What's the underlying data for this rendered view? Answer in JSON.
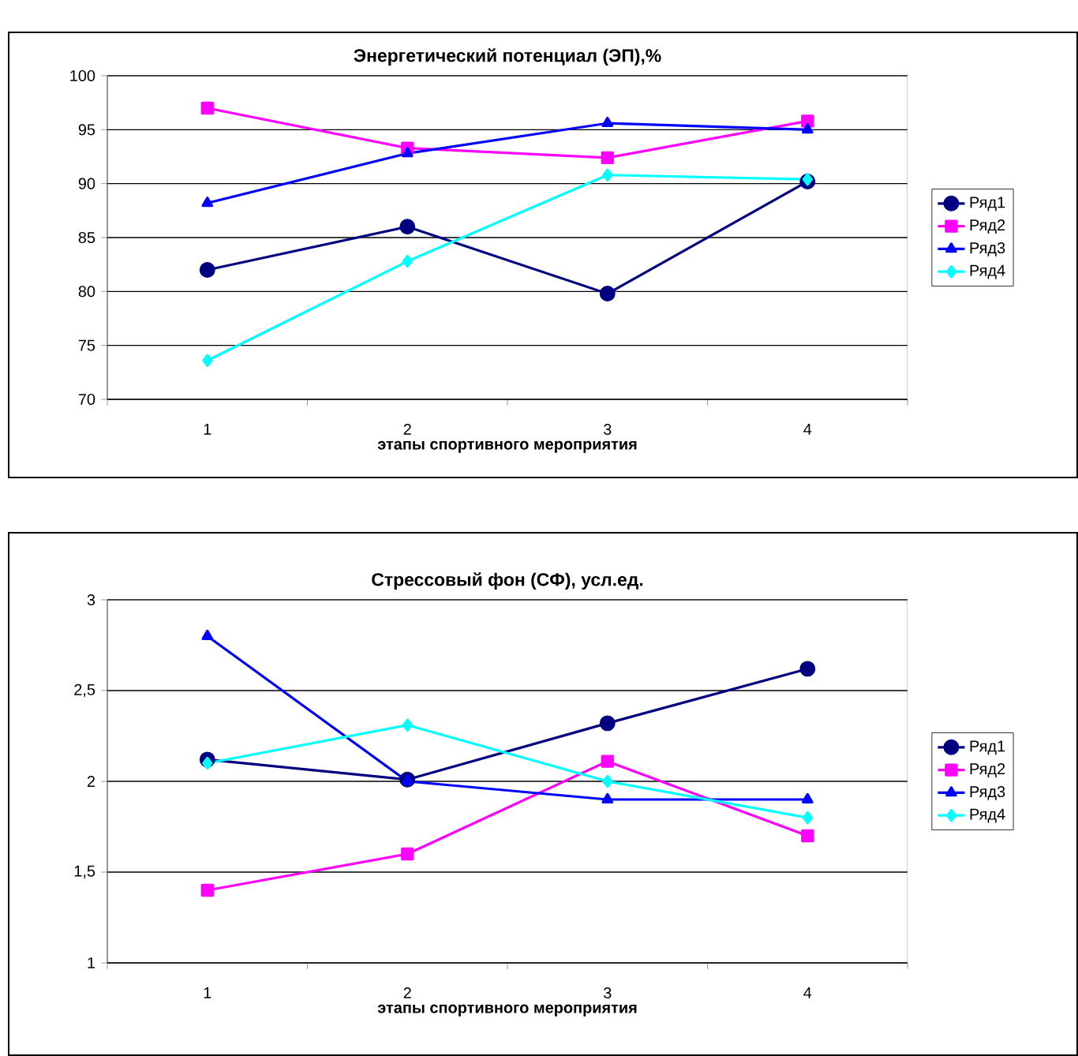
{
  "chart_data": [
    {
      "type": "line",
      "title": "Энергетический потенциал (ЭП),%",
      "xlabel": "этапы спортивного мероприятия",
      "categories": [
        "1",
        "2",
        "3",
        "4"
      ],
      "ylim": [
        70,
        100
      ],
      "yticks": [
        70,
        75,
        80,
        85,
        90,
        95,
        100
      ],
      "grid": "y",
      "legend": "right",
      "series": [
        {
          "name": "Ряд1",
          "color": "#000080",
          "marker": "circle",
          "values": [
            82,
            86,
            79.8,
            90.2
          ]
        },
        {
          "name": "Ряд2",
          "color": "#ff00ff",
          "marker": "square",
          "values": [
            97,
            93.3,
            92.4,
            95.8
          ]
        },
        {
          "name": "Ряд3",
          "color": "#0000ff",
          "marker": "triangle",
          "values": [
            88.2,
            92.8,
            95.6,
            95
          ]
        },
        {
          "name": "Ряд4",
          "color": "#00ffff",
          "marker": "diamond",
          "values": [
            73.6,
            82.8,
            90.8,
            90.4
          ]
        }
      ]
    },
    {
      "type": "line",
      "title": "Стрессовый фон (СФ), усл.ед.",
      "xlabel": "этапы спортивного мероприятия",
      "categories": [
        "1",
        "2",
        "3",
        "4"
      ],
      "ylim": [
        1,
        3
      ],
      "yticks": [
        1,
        {
          "value": 1.5,
          "label": "1,5"
        },
        2,
        {
          "value": 2.5,
          "label": "2,5"
        },
        3
      ],
      "grid": "y",
      "legend": "right",
      "series": [
        {
          "name": "Ряд1",
          "color": "#000080",
          "marker": "circle",
          "values": [
            2.12,
            2.01,
            2.32,
            2.62
          ]
        },
        {
          "name": "Ряд2",
          "color": "#ff00ff",
          "marker": "square",
          "values": [
            1.4,
            1.6,
            2.11,
            1.7
          ]
        },
        {
          "name": "Ряд3",
          "color": "#0000ff",
          "marker": "triangle",
          "values": [
            2.8,
            2.0,
            1.9,
            1.9
          ]
        },
        {
          "name": "Ряд4",
          "color": "#00ffff",
          "marker": "diamond",
          "values": [
            2.1,
            2.31,
            2.0,
            1.8
          ]
        }
      ]
    }
  ]
}
